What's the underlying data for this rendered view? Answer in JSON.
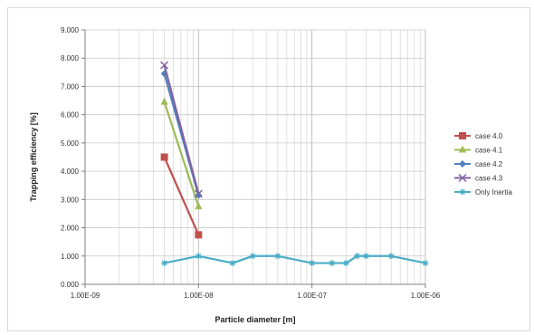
{
  "chart_data": {
    "type": "line",
    "title": "",
    "xlabel": "Particle diameter [m]",
    "ylabel": "Trapping efficiency [%]",
    "x_scale": "log",
    "xlim": [
      1e-09,
      1e-06
    ],
    "ylim": [
      0,
      9
    ],
    "x_tick_values": [
      1e-09,
      1e-08,
      1e-07,
      1e-06
    ],
    "x_tick_labels": [
      "1.00E-09",
      "1.00E-08",
      "1.00E-07",
      "1.00E-06"
    ],
    "y_tick_values": [
      0,
      1,
      2,
      3,
      4,
      5,
      6,
      7,
      8,
      9
    ],
    "y_tick_labels": [
      "0.000",
      "1.000",
      "2.000",
      "3.000",
      "4.000",
      "5.000",
      "6.000",
      "7.000",
      "8.000",
      "9.000"
    ],
    "grid": {
      "x_major": true,
      "x_minor": true,
      "y_major": true
    },
    "legend_position": "right",
    "series": [
      {
        "name": "case 4.0",
        "color": "#c0504d",
        "marker": "square",
        "x": [
          5e-09,
          1e-08
        ],
        "y": [
          4.5,
          1.75
        ]
      },
      {
        "name": "case 4.1",
        "color": "#9bbb59",
        "marker": "triangle",
        "x": [
          5e-09,
          1e-08
        ],
        "y": [
          6.45,
          2.75
        ]
      },
      {
        "name": "case 4.2",
        "color": "#4f81bd",
        "marker": "diamond",
        "x": [
          5e-09,
          1e-08
        ],
        "y": [
          7.45,
          3.15
        ]
      },
      {
        "name": "case 4.3",
        "color": "#8064a2",
        "marker": "x",
        "x": [
          5e-09,
          1e-08
        ],
        "y": [
          7.75,
          3.2
        ]
      },
      {
        "name": "Only Inertia",
        "color": "#4bacc6",
        "marker": "star",
        "x": [
          5e-09,
          1e-08,
          2e-08,
          3e-08,
          5e-08,
          1e-07,
          1.5e-07,
          2e-07,
          2.5e-07,
          3e-07,
          5e-07,
          1e-06
        ],
        "y": [
          0.75,
          1.0,
          0.75,
          1.0,
          1.0,
          0.75,
          0.75,
          0.75,
          1.0,
          1.0,
          1.0,
          0.75
        ]
      }
    ]
  }
}
